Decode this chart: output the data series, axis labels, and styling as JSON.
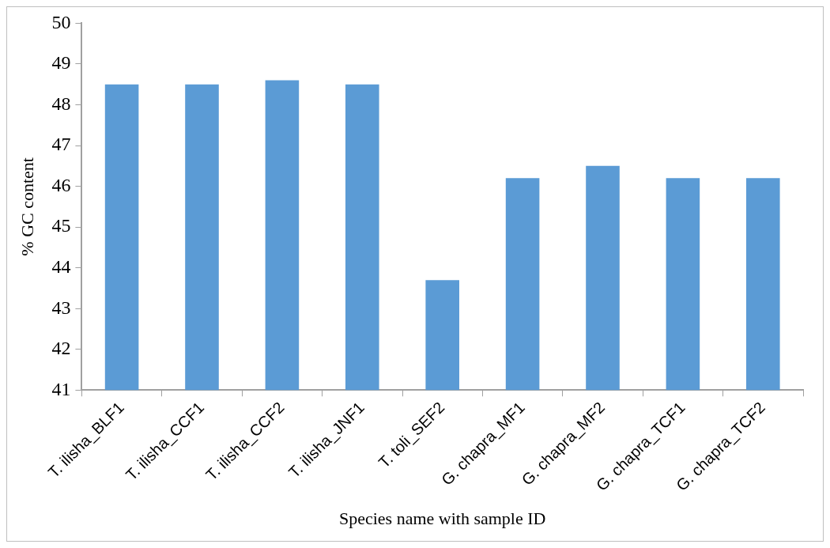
{
  "chart_data": {
    "type": "bar",
    "xlabel": "Species name with sample ID",
    "ylabel": "% GC content",
    "categories": [
      "T. ilisha_BLF1",
      "T. ilisha_CCF1",
      "T. ilisha_CCF2",
      "T. ilisha_JNF1",
      "T. toli_SEF2",
      "G. chapra_MF1",
      "G. chapra_MF2",
      "G. chapra_TCF1",
      "G. chapra_TCF2"
    ],
    "values": [
      48.5,
      48.5,
      48.6,
      48.5,
      43.7,
      46.2,
      46.5,
      46.2,
      46.2
    ],
    "color": "#5b9bd5",
    "ylim": [
      41,
      50
    ],
    "yticks": [
      41,
      42,
      43,
      44,
      45,
      46,
      47,
      48,
      49,
      50
    ],
    "grid": false,
    "legend": false
  }
}
